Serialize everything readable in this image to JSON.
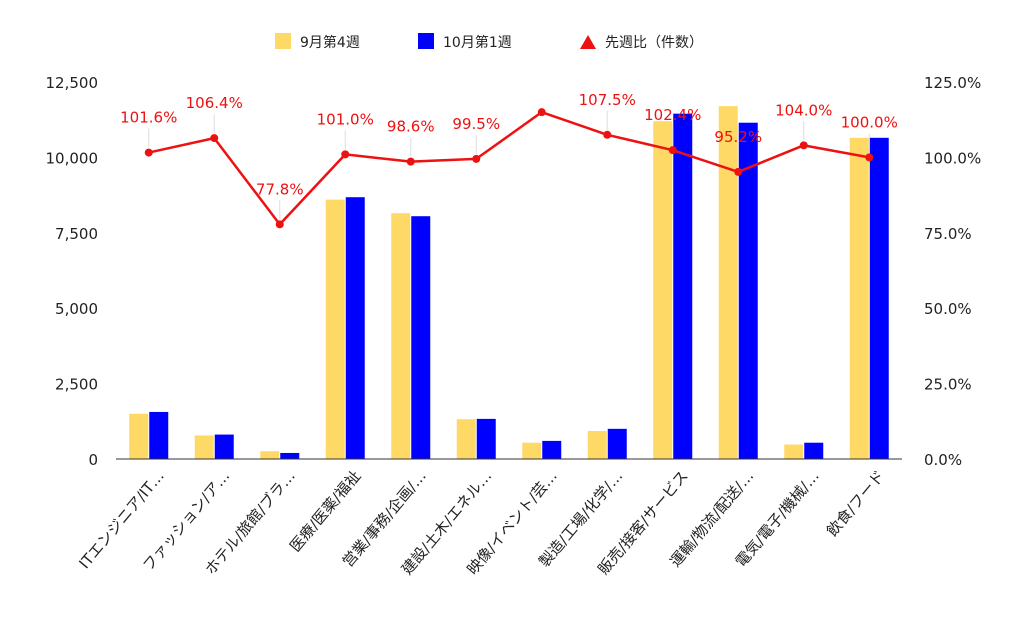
{
  "chart_data": {
    "type": "bar",
    "categories": [
      "ITエンジニア/IT…",
      "ファッション/ア…",
      "ホテル/旅館/ブラ…",
      "医療/医薬/福祉",
      "営業/事務/企画/…",
      "建設/土木/エネル…",
      "映像/イベント/芸…",
      "製造/工場/化学/…",
      "販売/接客/サービス",
      "運輸/物流/配送/…",
      "電気/電子/機械/…",
      "飲食/フード"
    ],
    "series": [
      {
        "name": "9月第4週",
        "type": "bar",
        "axis": "left",
        "color": "#ffd966",
        "values": [
          1500,
          780,
          260,
          8600,
          8150,
          1320,
          540,
          930,
          11200,
          11700,
          480,
          10650
        ]
      },
      {
        "name": "10月第1週",
        "type": "bar",
        "axis": "left",
        "color": "#0000ff",
        "values": [
          1560,
          810,
          200,
          8680,
          8050,
          1330,
          600,
          1000,
          11450,
          11150,
          540,
          10650
        ]
      },
      {
        "name": "先週比（件数）",
        "type": "line",
        "axis": "right",
        "color": "#ee1111",
        "values": [
          101.6,
          106.4,
          77.8,
          101.0,
          98.6,
          99.5,
          115.0,
          107.5,
          102.4,
          95.2,
          104.0,
          100.0
        ],
        "labels": [
          "101.6%",
          "106.4%",
          "77.8%",
          "101.0%",
          "98.6%",
          "99.5%",
          "",
          "107.5%",
          "102.4%",
          "95.2%",
          "104.0%",
          "100.0%"
        ]
      }
    ],
    "y_left": {
      "min": 0,
      "max": 12500,
      "ticks": [
        "0",
        "2,500",
        "5,000",
        "7,500",
        "10,000",
        "12,500"
      ]
    },
    "y_right": {
      "min": 0,
      "max": 125,
      "ticks": [
        "0.0%",
        "25.0%",
        "50.0%",
        "75.0%",
        "100.0%",
        "125.0%"
      ]
    },
    "legend_position": "top",
    "grid": false
  }
}
